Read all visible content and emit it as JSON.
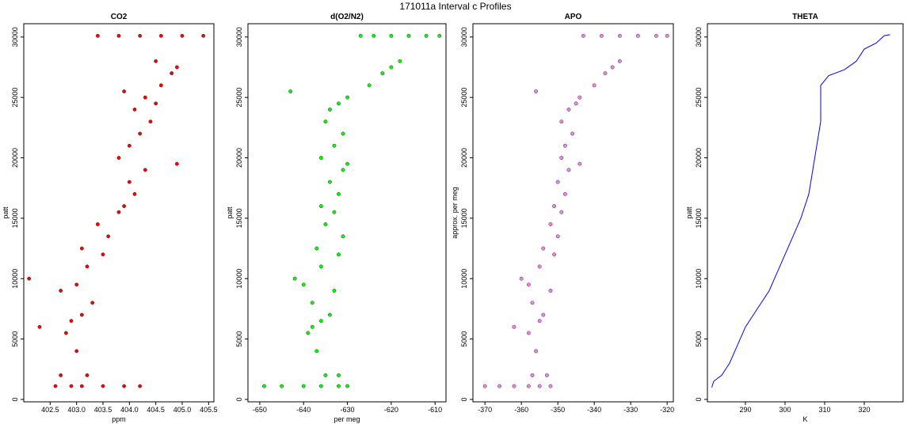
{
  "title": "171011a   Interval c Profiles",
  "chart_data": [
    {
      "type": "scatter",
      "title": "CO2",
      "xlabel": "ppm",
      "ylabel": "patt",
      "color": "#ff0000",
      "xlim": [
        402.0,
        405.6
      ],
      "ylim": [
        -200,
        31100
      ],
      "xticks": [
        402.5,
        {
          "value": 403,
          "label": "403.0"
        },
        403.5,
        {
          "value": 404,
          "label": "404.0"
        },
        404.5,
        {
          "value": 405,
          "label": "405.0"
        },
        405.5
      ],
      "yticks": [
        0,
        5000,
        10000,
        15000,
        20000,
        25000,
        30000
      ],
      "x": [
        402.6,
        402.9,
        403.1,
        403.5,
        403.9,
        404.2,
        402.7,
        403.2,
        403.0,
        402.8,
        402.9,
        403.1,
        403.3,
        402.7,
        403.0,
        403.2,
        403.5,
        403.1,
        403.6,
        403.4,
        403.8,
        403.9,
        404.1,
        404.0,
        404.3,
        403.8,
        404.0,
        404.2,
        404.4,
        404.1,
        404.5,
        404.3,
        404.6,
        404.8,
        404.9,
        404.5,
        403.4,
        403.8,
        404.2,
        404.6,
        405.0,
        405.4,
        402.1,
        402.3,
        404.9,
        403.9
      ],
      "values": [
        1100,
        1100,
        1100,
        1100,
        1100,
        1100,
        2000,
        2000,
        4000,
        5500,
        6500,
        7000,
        8000,
        9000,
        9500,
        11000,
        12000,
        12500,
        13500,
        14500,
        15500,
        16000,
        17000,
        18000,
        19000,
        20000,
        21000,
        22000,
        23000,
        24000,
        24500,
        25000,
        26000,
        27000,
        27500,
        28000,
        30100,
        30100,
        30100,
        30100,
        30100,
        30100,
        10000,
        6000,
        19500,
        25500
      ]
    },
    {
      "type": "scatter",
      "title": "d(O2/N2)",
      "xlabel": "per meg",
      "ylabel": "patt",
      "color": "#00ff00",
      "xlim": [
        -652.7,
        -607.5
      ],
      "ylim": [
        -200,
        31100
      ],
      "xticks": [
        -650,
        -640,
        -630,
        -620,
        -610
      ],
      "yticks": [
        0,
        5000,
        10000,
        15000,
        20000,
        25000,
        30000
      ],
      "x": [
        -649,
        -645,
        -640,
        -636,
        -632,
        -630,
        -635,
        -632,
        -637,
        -639,
        -636,
        -634,
        -638,
        -633,
        -640,
        -636,
        -632,
        -637,
        -631,
        -635,
        -633,
        -636,
        -632,
        -634,
        -631,
        -636,
        -633,
        -631,
        -635,
        -634,
        -632,
        -630,
        -625,
        -622,
        -620,
        -618,
        -627,
        -624,
        -620,
        -616,
        -612,
        -609,
        -642,
        -638,
        -630,
        -643
      ],
      "values": [
        1100,
        1100,
        1100,
        1100,
        1100,
        1100,
        2000,
        2000,
        4000,
        5500,
        6500,
        7000,
        8000,
        9000,
        9500,
        11000,
        12000,
        12500,
        13500,
        14500,
        15500,
        16000,
        17000,
        18000,
        19000,
        20000,
        21000,
        22000,
        23000,
        24000,
        24500,
        25000,
        26000,
        27000,
        27500,
        28000,
        30100,
        30100,
        30100,
        30100,
        30100,
        30100,
        10000,
        6000,
        19500,
        25500
      ]
    },
    {
      "type": "scatter",
      "title": "APO",
      "ylabel": "approx. per meg",
      "color": "#ee82ee",
      "xlim": [
        -373.3,
        -318.3
      ],
      "ylim": [
        -200,
        31100
      ],
      "xticks": [
        -370,
        -360,
        -350,
        -340,
        -330,
        -320
      ],
      "yticks": [
        0,
        5000,
        10000,
        15000,
        20000,
        25000,
        30000
      ],
      "x": [
        -370,
        -366,
        -362,
        -358,
        -355,
        -352,
        -357,
        -353,
        -356,
        -358,
        -355,
        -354,
        -357,
        -352,
        -358,
        -355,
        -351,
        -354,
        -350,
        -352,
        -349,
        -351,
        -348,
        -350,
        -347,
        -349,
        -348,
        -346,
        -349,
        -347,
        -345,
        -344,
        -340,
        -337,
        -335,
        -333,
        -343,
        -338,
        -333,
        -328,
        -323,
        -320,
        -360,
        -362,
        -344,
        -356
      ],
      "values": [
        1100,
        1100,
        1100,
        1100,
        1100,
        1100,
        2000,
        2000,
        4000,
        5500,
        6500,
        7000,
        8000,
        9000,
        9500,
        11000,
        12000,
        12500,
        13500,
        14500,
        15500,
        16000,
        17000,
        18000,
        19000,
        20000,
        21000,
        22000,
        23000,
        24000,
        24500,
        25000,
        26000,
        27000,
        27500,
        28000,
        30100,
        30100,
        30100,
        30100,
        30100,
        30100,
        10000,
        6000,
        19500,
        25500
      ]
    },
    {
      "type": "line",
      "title": "THETA",
      "xlabel": "K",
      "ylabel": "patt",
      "color": "#0000ff",
      "xlim": [
        280.4,
        329.8
      ],
      "ylim": [
        -200,
        31100
      ],
      "xticks": [
        290,
        300,
        310,
        320
      ],
      "yticks": [
        0,
        5000,
        10000,
        15000,
        20000,
        25000,
        30000
      ],
      "x": [
        281.5,
        282,
        284,
        286,
        288,
        290,
        293,
        296,
        298,
        300,
        302,
        304,
        306,
        307,
        308,
        309,
        309,
        309,
        311,
        315,
        318,
        320,
        323,
        325,
        326.5
      ],
      "values": [
        1000,
        1500,
        2000,
        3000,
        4500,
        6000,
        7500,
        9000,
        10500,
        12000,
        13500,
        15000,
        17000,
        19000,
        21000,
        23000,
        24000,
        26000,
        26800,
        27300,
        28000,
        29000,
        29500,
        30100,
        30200
      ]
    }
  ]
}
